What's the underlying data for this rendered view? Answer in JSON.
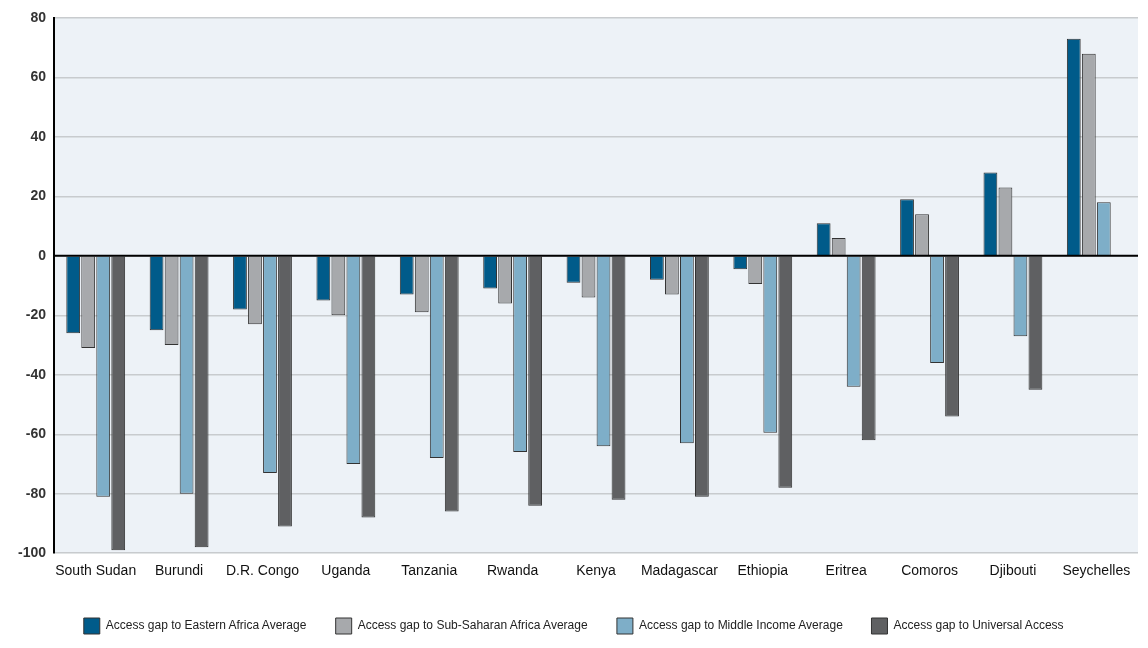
{
  "chart_data": {
    "type": "bar",
    "categories": [
      "South Sudan",
      "Burundi",
      "D.R. Congo",
      "Uganda",
      "Tanzania",
      "Rwanda",
      "Kenya",
      "Madagascar",
      "Ethiopia",
      "Eritrea",
      "Comoros",
      "Djibouti",
      "Seychelles"
    ],
    "series": [
      {
        "name": "Access gap to Eastern Africa Average",
        "color": "#005b8a",
        "values": [
          -26,
          -25,
          -18,
          -15,
          -13,
          -11,
          -9,
          -8,
          -4.5,
          11,
          19,
          28,
          73
        ]
      },
      {
        "name": "Access gap to Sub-Saharan Africa Average",
        "color": "#a7a9ac",
        "values": [
          -31,
          -30,
          -23,
          -20,
          -19,
          -16,
          -14,
          -13,
          -9.5,
          6,
          14,
          23,
          68
        ]
      },
      {
        "name": "Access gap to Middle Income Average",
        "color": "#7eaec8",
        "values": [
          -81,
          -80,
          -73,
          -70,
          -68,
          -66,
          -64,
          -63,
          -59.5,
          -44,
          -36,
          -27,
          18
        ]
      },
      {
        "name": "Access gap to Universal Access",
        "color": "#5f6062",
        "values": [
          -99,
          -98,
          -91,
          -88,
          -86,
          -84,
          -82,
          -81,
          -78,
          -62,
          -54,
          -45,
          null
        ]
      }
    ],
    "ylim": [
      -100,
      80
    ],
    "yticks": [
      -100,
      -80,
      -60,
      -40,
      -20,
      0,
      20,
      40,
      60,
      80
    ],
    "grid": "y",
    "legend": "bottom"
  }
}
